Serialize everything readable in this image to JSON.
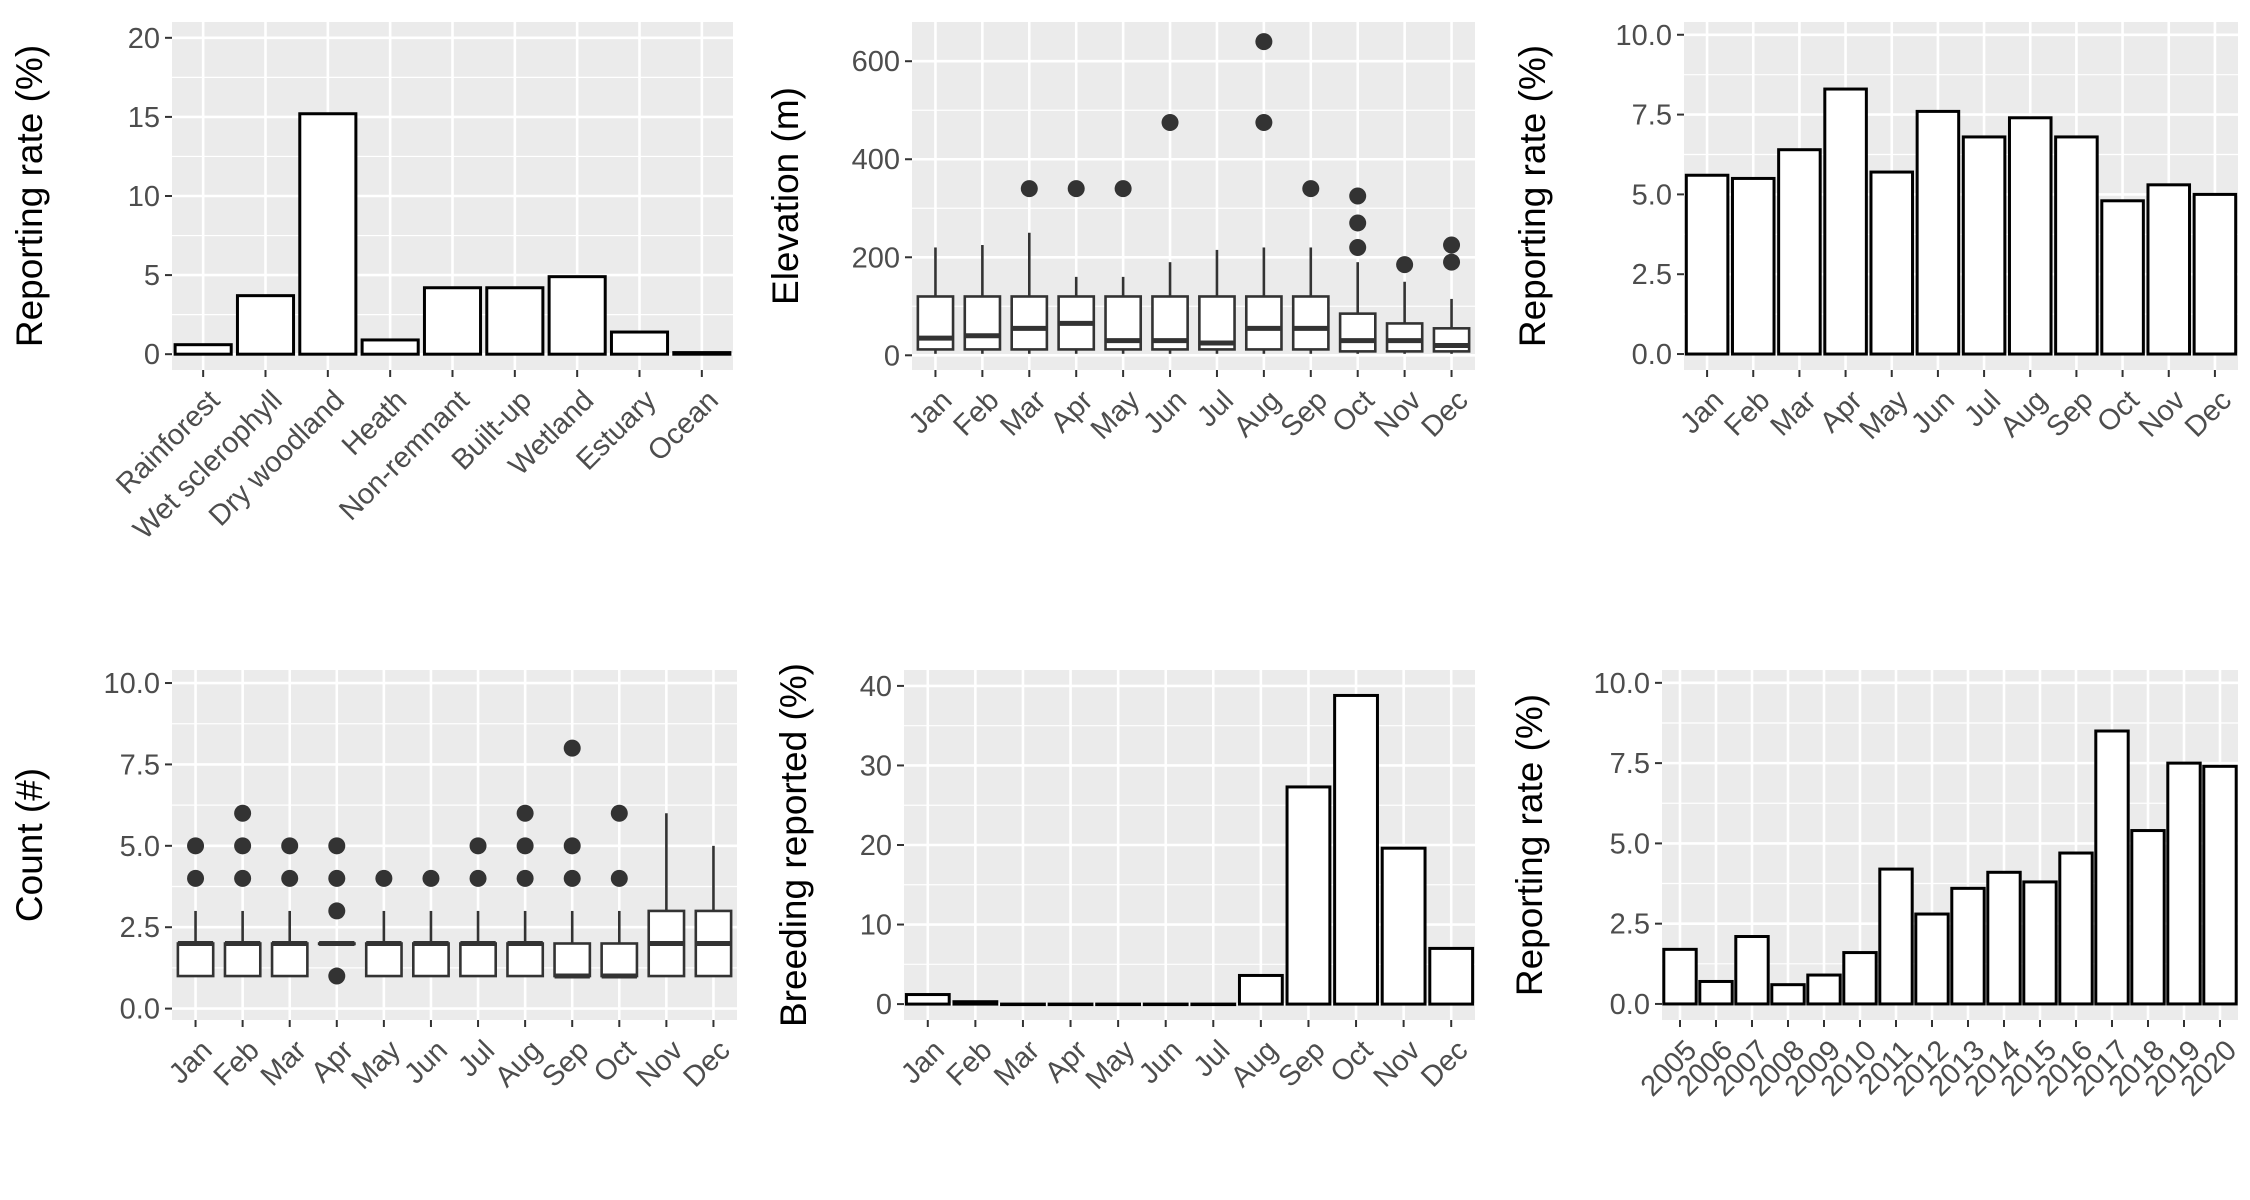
{
  "chart_data": [
    {
      "type": "bar",
      "ylabel": "Reporting rate (%)",
      "xlabel": "",
      "categories": [
        "Rainforest",
        "Wet sclerophyll",
        "Dry woodland",
        "Heath",
        "Non-remnant",
        "Built-up",
        "Wetland",
        "Estuary",
        "Ocean"
      ],
      "values": [
        0.6,
        3.7,
        15.2,
        0.9,
        4.2,
        4.2,
        4.9,
        1.4,
        0.1
      ],
      "ylim": [
        -1,
        21
      ],
      "yticks": [
        0,
        5,
        10,
        15,
        20
      ],
      "ytick_labels": [
        "0",
        "5",
        "10",
        "15",
        "20"
      ],
      "grid": true,
      "legend": "none"
    },
    {
      "type": "boxplot",
      "ylabel": "Elevation (m)",
      "xlabel": "",
      "categories": [
        "Jan",
        "Feb",
        "Mar",
        "Apr",
        "May",
        "Jun",
        "Jul",
        "Aug",
        "Sep",
        "Oct",
        "Nov",
        "Dec"
      ],
      "boxes": [
        {
          "whisker_low": 3,
          "q1": 12,
          "median": 35,
          "q3": 120,
          "whisker_high": 220,
          "outliers": []
        },
        {
          "whisker_low": 3,
          "q1": 12,
          "median": 40,
          "q3": 120,
          "whisker_high": 225,
          "outliers": []
        },
        {
          "whisker_low": 3,
          "q1": 12,
          "median": 55,
          "q3": 120,
          "whisker_high": 250,
          "outliers": [
            340
          ]
        },
        {
          "whisker_low": 3,
          "q1": 12,
          "median": 65,
          "q3": 120,
          "whisker_high": 160,
          "outliers": [
            340
          ]
        },
        {
          "whisker_low": 3,
          "q1": 12,
          "median": 30,
          "q3": 120,
          "whisker_high": 160,
          "outliers": [
            340
          ]
        },
        {
          "whisker_low": 3,
          "q1": 12,
          "median": 30,
          "q3": 120,
          "whisker_high": 190,
          "outliers": [
            475
          ]
        },
        {
          "whisker_low": 3,
          "q1": 12,
          "median": 25,
          "q3": 120,
          "whisker_high": 215,
          "outliers": []
        },
        {
          "whisker_low": 3,
          "q1": 12,
          "median": 55,
          "q3": 120,
          "whisker_high": 220,
          "outliers": [
            475,
            640
          ]
        },
        {
          "whisker_low": 3,
          "q1": 12,
          "median": 55,
          "q3": 120,
          "whisker_high": 220,
          "outliers": [
            340
          ]
        },
        {
          "whisker_low": 3,
          "q1": 8,
          "median": 30,
          "q3": 85,
          "whisker_high": 190,
          "outliers": [
            220,
            270,
            325
          ]
        },
        {
          "whisker_low": 3,
          "q1": 8,
          "median": 30,
          "q3": 65,
          "whisker_high": 150,
          "outliers": [
            185
          ]
        },
        {
          "whisker_low": 3,
          "q1": 8,
          "median": 20,
          "q3": 55,
          "whisker_high": 115,
          "outliers": [
            190,
            225
          ]
        }
      ],
      "ylim": [
        -30,
        680
      ],
      "yticks": [
        0,
        200,
        400,
        600
      ],
      "ytick_labels": [
        "0",
        "200",
        "400",
        "600"
      ],
      "grid": true,
      "legend": "none"
    },
    {
      "type": "bar",
      "ylabel": "Reporting rate (%)",
      "xlabel": "",
      "categories": [
        "Jan",
        "Feb",
        "Mar",
        "Apr",
        "May",
        "Jun",
        "Jul",
        "Aug",
        "Sep",
        "Oct",
        "Nov",
        "Dec"
      ],
      "values": [
        5.6,
        5.5,
        6.4,
        8.3,
        5.7,
        7.6,
        6.8,
        7.4,
        6.8,
        4.8,
        5.3,
        5.0
      ],
      "ylim": [
        -0.5,
        10.4
      ],
      "yticks": [
        0,
        2.5,
        5.0,
        7.5,
        10.0
      ],
      "ytick_labels": [
        "0.0",
        "2.5",
        "5.0",
        "7.5",
        "10.0"
      ],
      "grid": true,
      "legend": "none"
    },
    {
      "type": "boxplot",
      "ylabel": "Count (#)",
      "xlabel": "",
      "categories": [
        "Jan",
        "Feb",
        "Mar",
        "Apr",
        "May",
        "Jun",
        "Jul",
        "Aug",
        "Sep",
        "Oct",
        "Nov",
        "Dec"
      ],
      "boxes": [
        {
          "whisker_low": 1,
          "q1": 1,
          "median": 2,
          "q3": 2,
          "whisker_high": 3,
          "outliers": [
            4,
            5
          ]
        },
        {
          "whisker_low": 1,
          "q1": 1,
          "median": 2,
          "q3": 2,
          "whisker_high": 3,
          "outliers": [
            4,
            5,
            6
          ]
        },
        {
          "whisker_low": 1,
          "q1": 1,
          "median": 2,
          "q3": 2,
          "whisker_high": 3,
          "outliers": [
            4,
            5
          ]
        },
        {
          "whisker_low": 2,
          "q1": 2,
          "median": 2,
          "q3": 2,
          "whisker_high": 2,
          "outliers": [
            1,
            3,
            4,
            5
          ]
        },
        {
          "whisker_low": 1,
          "q1": 1,
          "median": 2,
          "q3": 2,
          "whisker_high": 3,
          "outliers": [
            4
          ]
        },
        {
          "whisker_low": 1,
          "q1": 1,
          "median": 2,
          "q3": 2,
          "whisker_high": 3,
          "outliers": [
            4
          ]
        },
        {
          "whisker_low": 1,
          "q1": 1,
          "median": 2,
          "q3": 2,
          "whisker_high": 3,
          "outliers": [
            4,
            5
          ]
        },
        {
          "whisker_low": 1,
          "q1": 1,
          "median": 2,
          "q3": 2,
          "whisker_high": 3,
          "outliers": [
            4,
            5,
            6
          ]
        },
        {
          "whisker_low": 1,
          "q1": 1,
          "median": 1,
          "q3": 2,
          "whisker_high": 3,
          "outliers": [
            4,
            5,
            8
          ]
        },
        {
          "whisker_low": 1,
          "q1": 1,
          "median": 1,
          "q3": 2,
          "whisker_high": 3,
          "outliers": [
            4,
            6
          ]
        },
        {
          "whisker_low": 1,
          "q1": 1,
          "median": 2,
          "q3": 3,
          "whisker_high": 6,
          "outliers": []
        },
        {
          "whisker_low": 1,
          "q1": 1,
          "median": 2,
          "q3": 3,
          "whisker_high": 5,
          "outliers": []
        }
      ],
      "ylim": [
        -0.35,
        10.4
      ],
      "yticks": [
        0,
        2.5,
        5.0,
        7.5,
        10.0
      ],
      "ytick_labels": [
        "0.0",
        "2.5",
        "5.0",
        "7.5",
        "10.0"
      ],
      "grid": true,
      "legend": "none"
    },
    {
      "type": "bar",
      "ylabel": "Breeding reported (%)",
      "xlabel": "",
      "categories": [
        "Jan",
        "Feb",
        "Mar",
        "Apr",
        "May",
        "Jun",
        "Jul",
        "Aug",
        "Sep",
        "Oct",
        "Nov",
        "Dec"
      ],
      "values": [
        1.2,
        0.3,
        0,
        0,
        0,
        0,
        0,
        3.6,
        27.3,
        38.8,
        19.6,
        7.0
      ],
      "ylim": [
        -2,
        42
      ],
      "yticks": [
        0,
        10,
        20,
        30,
        40
      ],
      "ytick_labels": [
        "0",
        "10",
        "20",
        "30",
        "40"
      ],
      "grid": true,
      "legend": "none"
    },
    {
      "type": "bar",
      "ylabel": "Reporting rate (%)",
      "xlabel": "",
      "categories": [
        "2005",
        "2006",
        "2007",
        "2008",
        "2009",
        "2010",
        "2011",
        "2012",
        "2013",
        "2014",
        "2015",
        "2016",
        "2017",
        "2018",
        "2019",
        "2020"
      ],
      "values": [
        1.7,
        0.7,
        2.1,
        0.6,
        0.9,
        1.6,
        4.2,
        2.8,
        3.6,
        4.1,
        3.8,
        4.7,
        8.5,
        5.4,
        7.5,
        7.4
      ],
      "ylim": [
        -0.5,
        10.4
      ],
      "yticks": [
        0,
        2.5,
        5.0,
        7.5,
        10.0
      ],
      "ytick_labels": [
        "0.0",
        "2.5",
        "5.0",
        "7.5",
        "10.0"
      ],
      "grid": true,
      "legend": "none"
    }
  ]
}
